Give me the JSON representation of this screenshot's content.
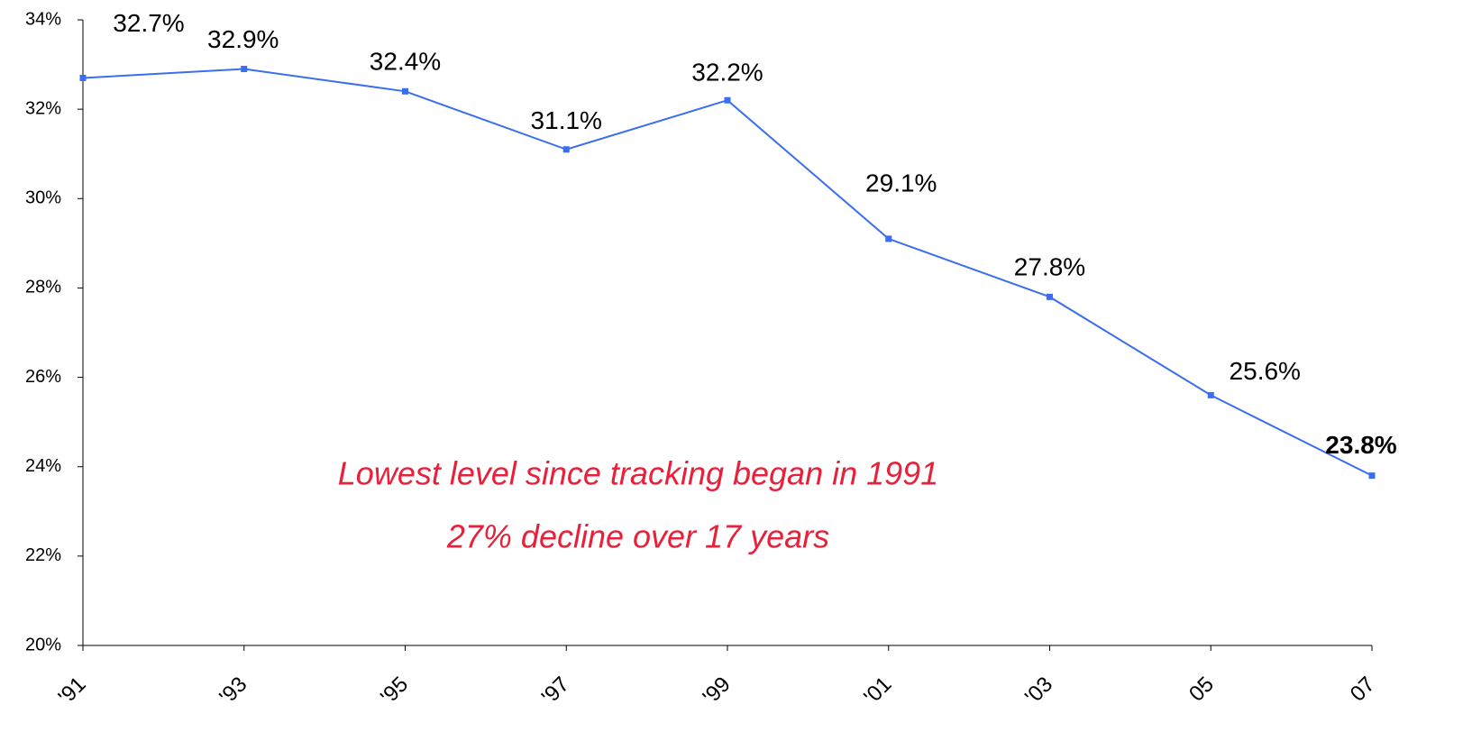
{
  "chart_data": {
    "type": "line",
    "categories": [
      "'91",
      "'93",
      "'95",
      "'97",
      "'99",
      "'01",
      "'03",
      "05",
      "07"
    ],
    "series": [
      {
        "name": null,
        "color": "#3a6ef0",
        "values": [
          32.7,
          32.9,
          32.4,
          31.1,
          32.2,
          29.1,
          27.8,
          25.6,
          23.8
        ],
        "value_labels": [
          "32.7%",
          "32.9%",
          "32.4%",
          "31.1%",
          "32.2%",
          "29.1%",
          "27.8%",
          "25.6%",
          "23.8%"
        ]
      }
    ],
    "ylim": [
      20,
      34
    ],
    "yticks": [
      {
        "value": 20,
        "label": "20%"
      },
      {
        "value": 22,
        "label": "22%"
      },
      {
        "value": 24,
        "label": "24%"
      },
      {
        "value": 26,
        "label": "26%"
      },
      {
        "value": 28,
        "label": "28%"
      },
      {
        "value": 30,
        "label": "30%"
      },
      {
        "value": 32,
        "label": "32%"
      },
      {
        "value": 34,
        "label": "34%"
      }
    ],
    "annotations": [
      "Lowest level since tracking began in 1991",
      "27% decline over 17 years"
    ],
    "grid": false
  }
}
